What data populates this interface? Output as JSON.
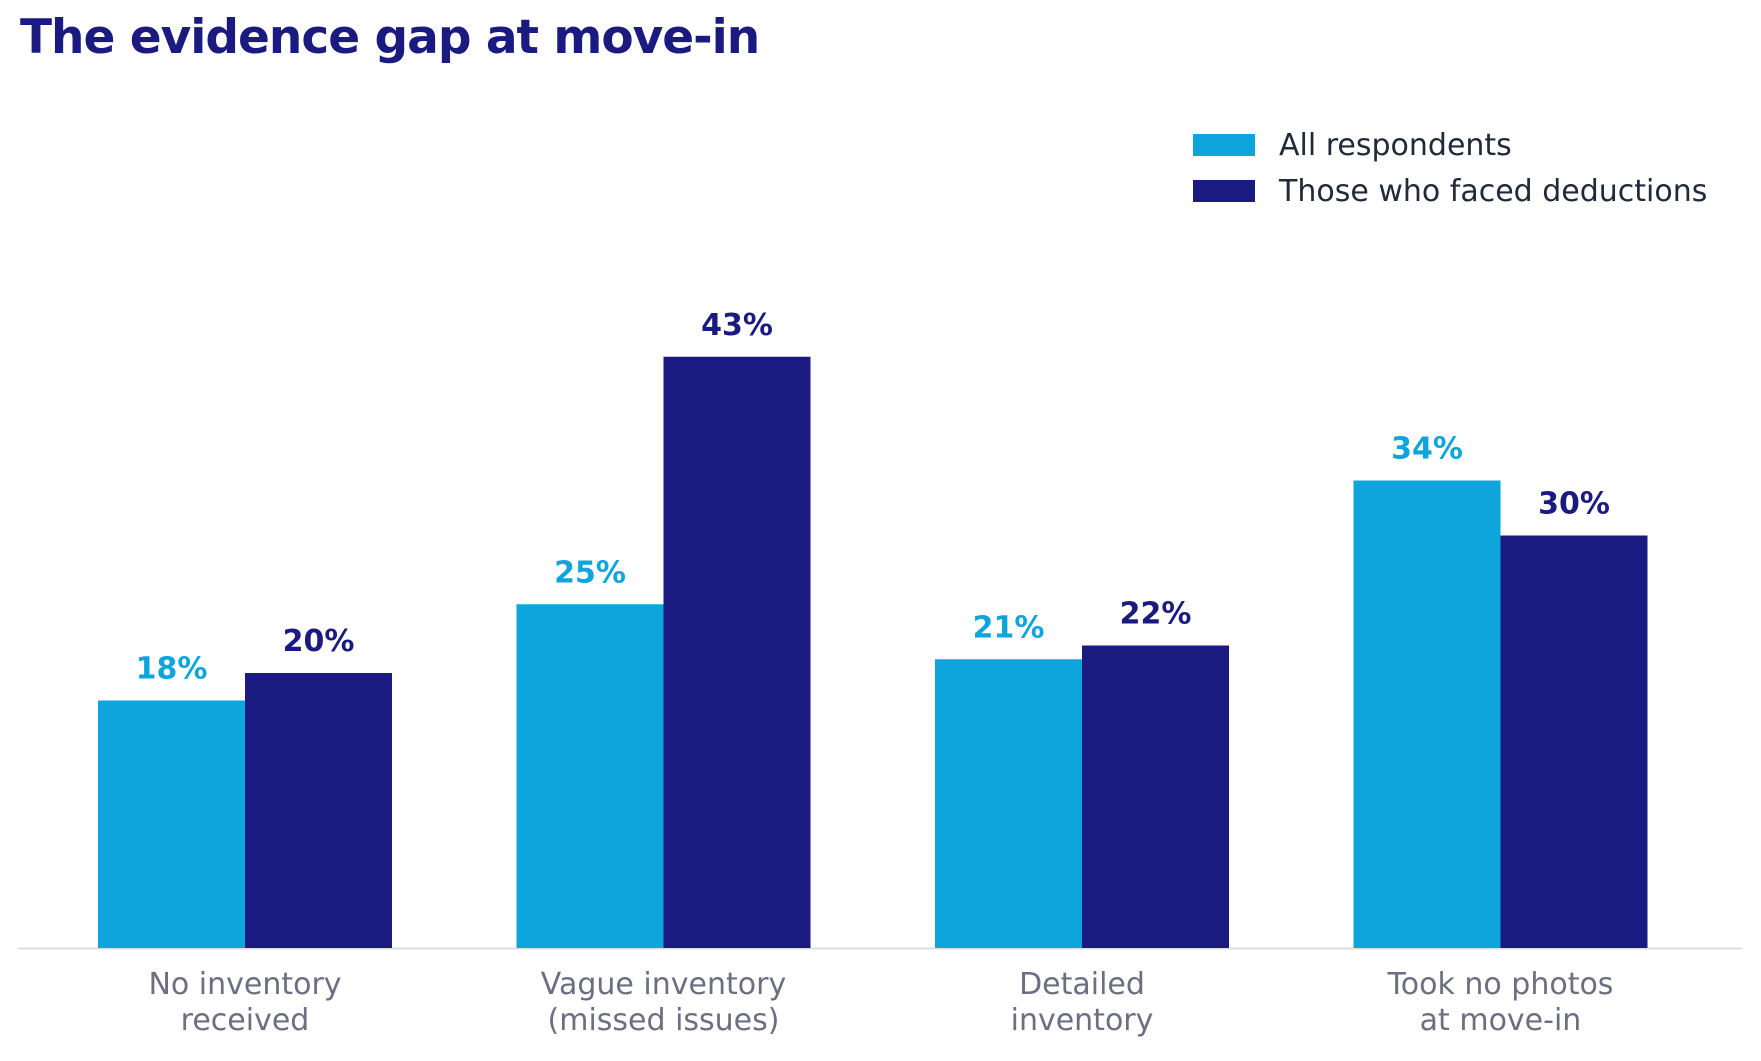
{
  "chart_data": {
    "type": "bar",
    "title": "The evidence gap at move-in",
    "categories": [
      [
        "No inventory",
        "received"
      ],
      [
        "Vague inventory",
        "(missed issues)"
      ],
      [
        "Detailed",
        "inventory"
      ],
      [
        "Took no photos",
        "at move-in"
      ]
    ],
    "series": [
      {
        "name": "All respondents",
        "values": [
          18,
          25,
          21,
          34
        ],
        "labels": [
          "18%",
          "25%",
          "21%",
          "34%"
        ],
        "color": "#0ea5dd"
      },
      {
        "name": "Those who faced deductions",
        "values": [
          20,
          43,
          22,
          30
        ],
        "labels": [
          "20%",
          "43%",
          "22%",
          "30%"
        ],
        "color": "#1a1a80"
      }
    ],
    "ylim": [
      0,
      50
    ],
    "grid": false,
    "legend_position": "top-right",
    "baseline_color": "#d9dde6"
  }
}
